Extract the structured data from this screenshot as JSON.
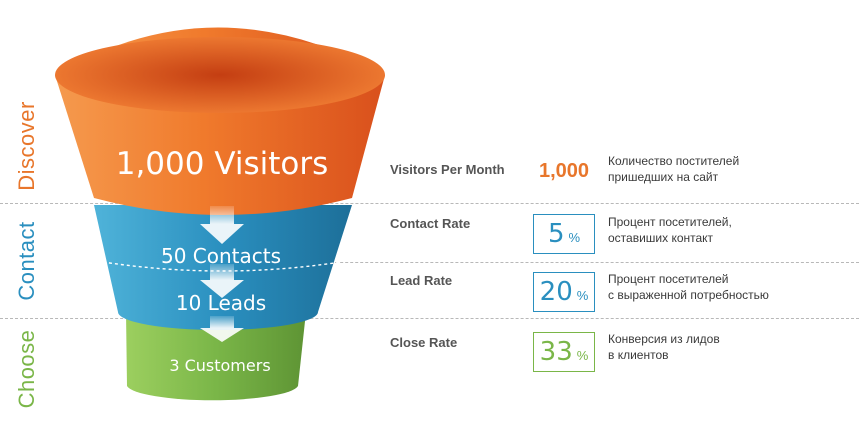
{
  "stages": {
    "discover": "Discover",
    "contact": "Contact",
    "choose": "Choose"
  },
  "funnel": {
    "visitors": "1,000 Visitors",
    "contacts": "50 Contacts",
    "leads": "10 Leads",
    "customers": "3 Customers"
  },
  "metrics": [
    {
      "label": "Visitors Per Month",
      "value": "1,000",
      "unit": "",
      "desc_line1": "Количество постителей",
      "desc_line2": "пришедших на сайт"
    },
    {
      "label": "Contact Rate",
      "value": "5",
      "unit": "%",
      "desc_line1": "Процент посетителей,",
      "desc_line2": "оставиших контакт"
    },
    {
      "label": "Lead Rate",
      "value": "20",
      "unit": "%",
      "desc_line1": "Процент посетителей",
      "desc_line2": "с выраженной потребностью"
    },
    {
      "label": "Close Rate",
      "value": "33",
      "unit": "%",
      "desc_line1": "Конверсия из лидов",
      "desc_line2": "в клиентов"
    }
  ],
  "colors": {
    "orange": "#e8762b",
    "blue": "#2a8fbf",
    "green": "#7ab648"
  }
}
